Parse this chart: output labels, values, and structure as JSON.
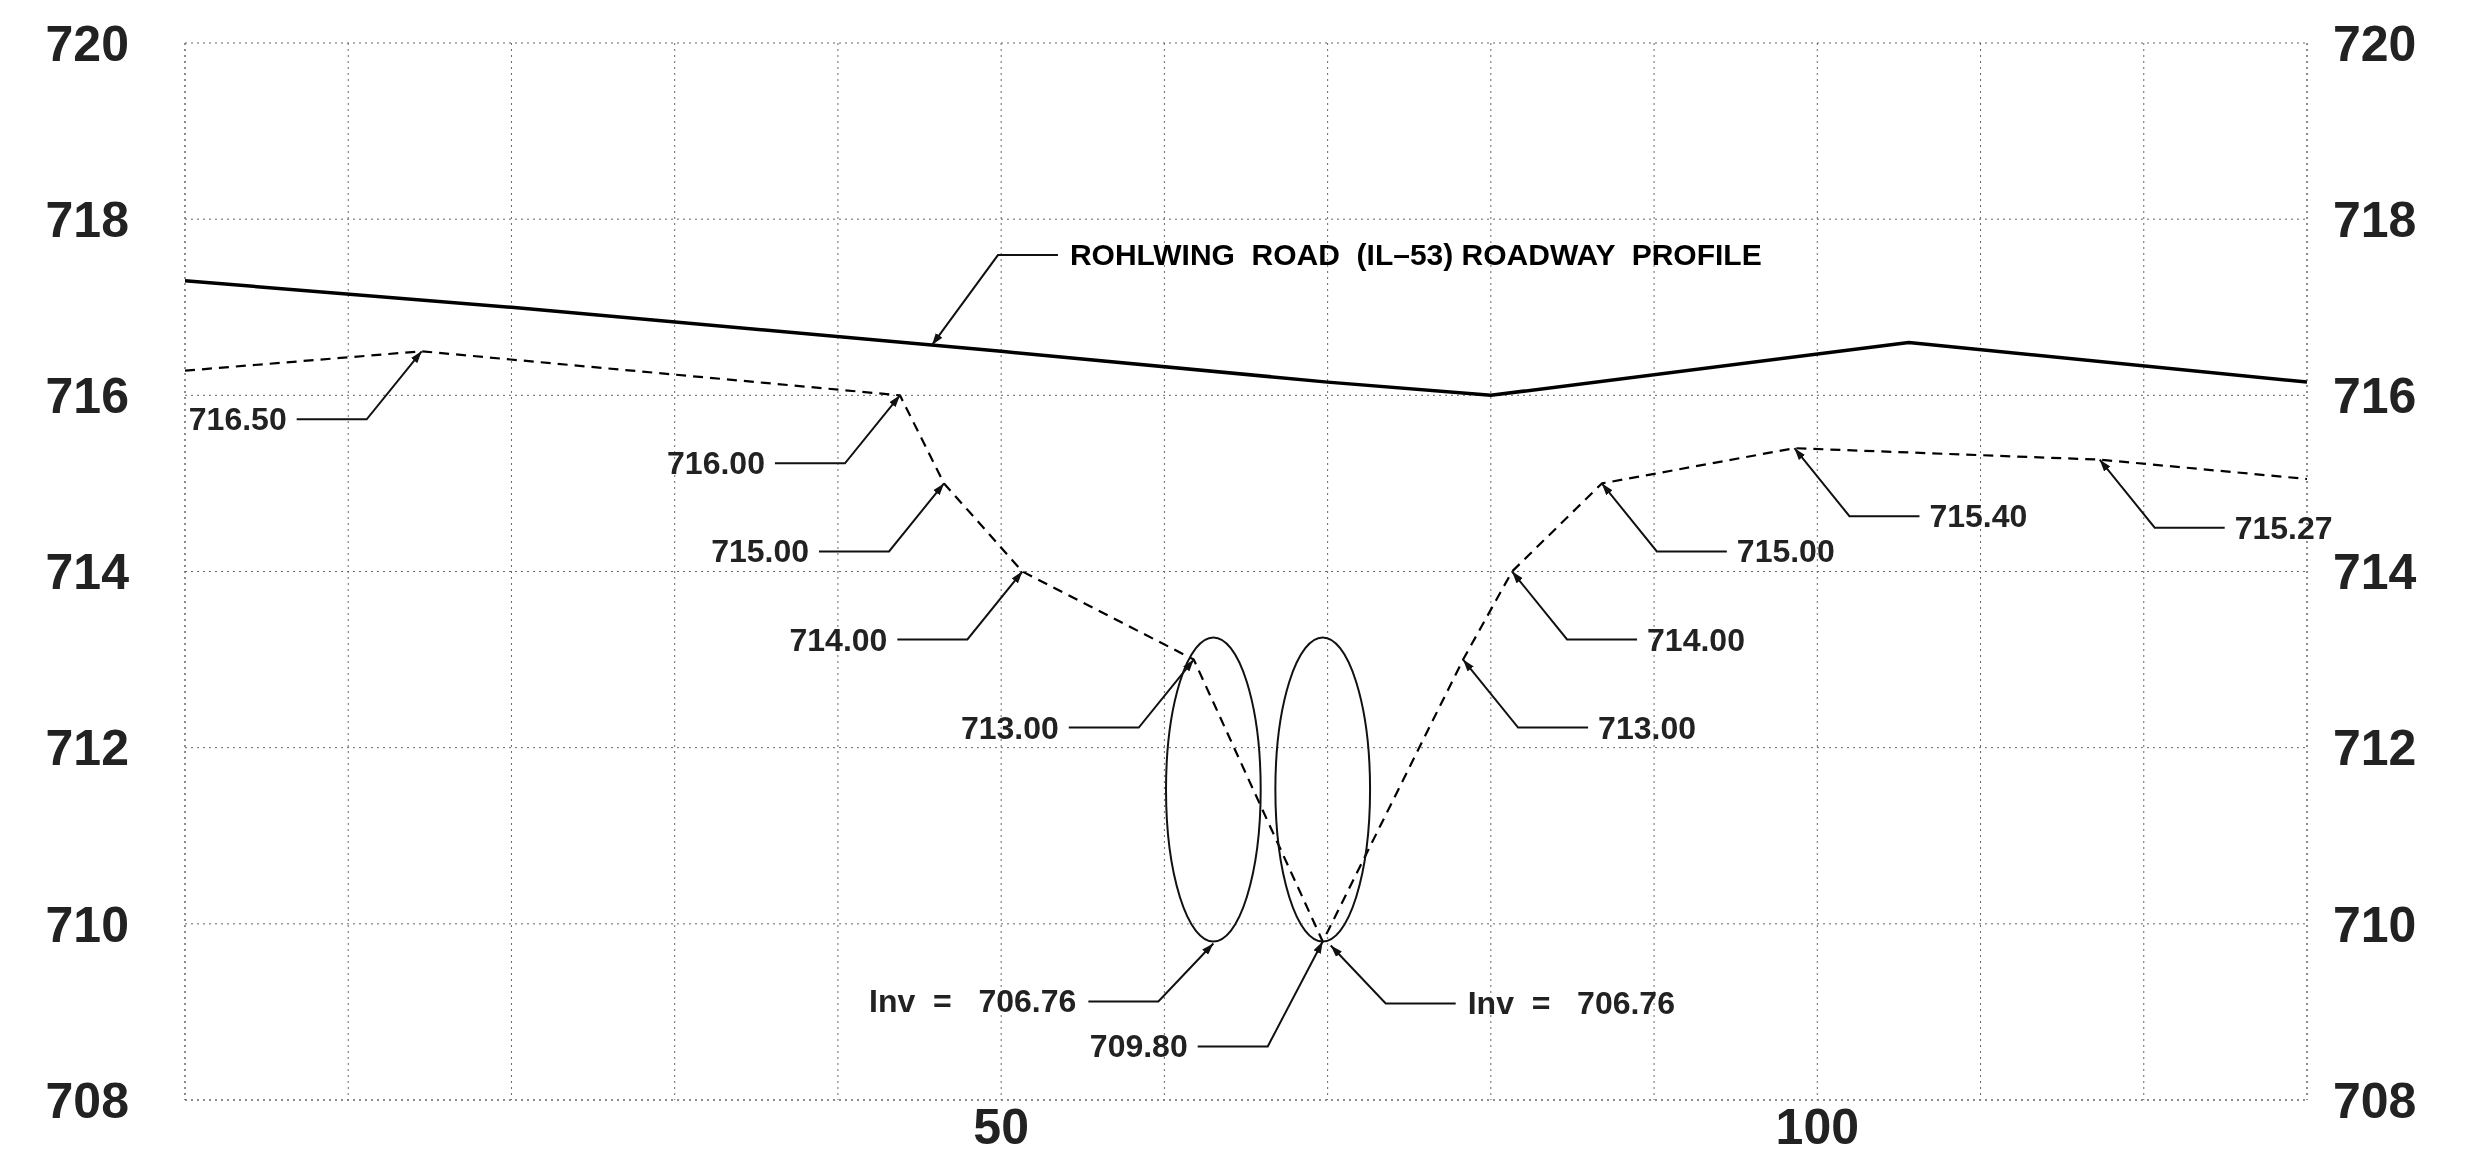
{
  "chart_data": {
    "type": "line",
    "xlim": [
      0,
      130
    ],
    "ylim": [
      708,
      720
    ],
    "y2lim": [
      708,
      720
    ],
    "xticks": [
      {
        "value": 0,
        "label": null
      },
      {
        "value": 10,
        "label": null
      },
      {
        "value": 20,
        "label": null
      },
      {
        "value": 30,
        "label": null
      },
      {
        "value": 40,
        "label": null
      },
      50,
      {
        "value": 60,
        "label": null
      },
      {
        "value": 70,
        "label": null
      },
      {
        "value": 80,
        "label": null
      },
      {
        "value": 90,
        "label": null
      },
      100,
      {
        "value": 110,
        "label": null
      },
      {
        "value": 120,
        "label": null
      },
      {
        "value": 130,
        "label": null
      }
    ],
    "yticks": [
      708,
      710,
      712,
      714,
      716,
      718,
      720
    ],
    "y2ticks": [
      708,
      710,
      712,
      714,
      716,
      718,
      720
    ],
    "grid": true,
    "marker": "none",
    "series": [
      {
        "name": "ROHLWING  ROAD  (IL–53) ROADWAY  PROFILE",
        "color": "#000000",
        "line_style": "solid",
        "x": [
          0,
          20,
          50,
          70,
          80,
          105.6,
          130
        ],
        "values": [
          717.3,
          717.0,
          716.5,
          716.15,
          716.0,
          716.6,
          716.15
        ]
      },
      {
        "color": "#000000",
        "line_style": "dashed",
        "x": [
          0,
          14.5,
          43.8,
          46.5,
          51.3,
          61.8,
          69.7,
          78.3,
          81.3,
          86.8,
          98.6,
          117.3,
          130
        ],
        "values": [
          716.28,
          716.5,
          716.0,
          715.0,
          714.0,
          713.0,
          709.8,
          713.0,
          714.0,
          715.0,
          715.4,
          715.27,
          715.05
        ],
        "value_labels": [
          null,
          "716.50",
          "716.00",
          "715.00",
          "714.00",
          "713.00",
          "709.80",
          "713.00",
          "714.00",
          "715.00",
          "715.40",
          "715.27",
          null
        ]
      }
    ],
    "annotations": [
      "Inv  =   706.76",
      "Inv  =   706.76"
    ]
  }
}
